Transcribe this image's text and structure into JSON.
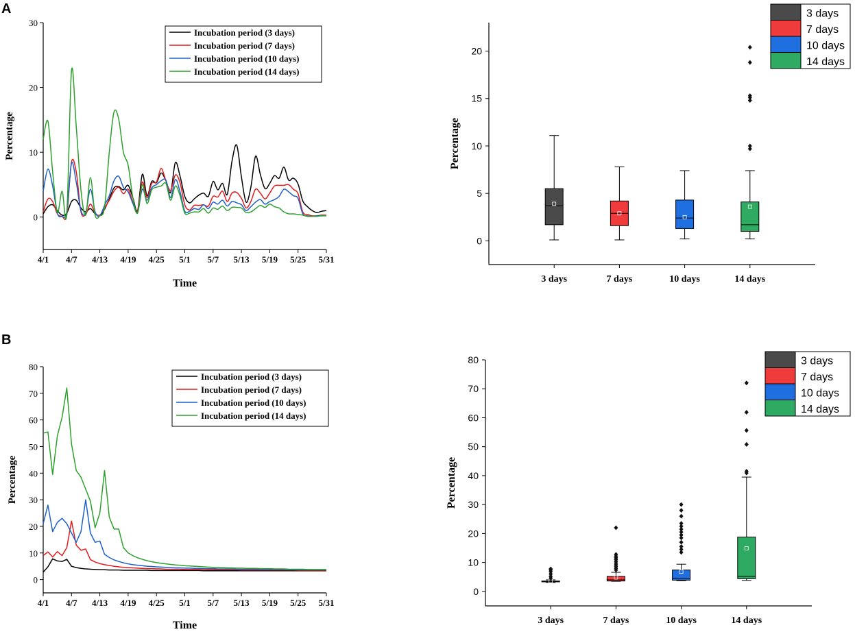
{
  "panels": [
    {
      "label": "A"
    },
    {
      "label": "B"
    }
  ],
  "chart_data": [
    {
      "type": "line",
      "panel": "A",
      "xlabel": "Time",
      "ylabel": "Percentage",
      "ylim": [
        -5,
        30
      ],
      "yticks": [
        0,
        10,
        20,
        30
      ],
      "x_tick_labels": [
        "4/1",
        "4/7",
        "4/13",
        "4/19",
        "4/25",
        "5/1",
        "5/7",
        "5/13",
        "5/19",
        "5/25",
        "5/31"
      ],
      "x_range_days": [
        0,
        60
      ],
      "legend_position": "top-center",
      "series": [
        {
          "name": "Incubation period (3 days)",
          "color": "#000000",
          "values": [
            0.5,
            1.6,
            1.9,
            1.0,
            0.3,
            0.6,
            2.4,
            2.6,
            1.4,
            0.8,
            1.3,
            0.5,
            0.2,
            1.2,
            2.8,
            4.5,
            4.7,
            4.2,
            4.9,
            3.0,
            1.0,
            6.6,
            3.3,
            5.5,
            5.3,
            6.8,
            5.6,
            3.8,
            8.4,
            6.3,
            3.2,
            2.2,
            2.8,
            3.4,
            3.7,
            3.2,
            5.5,
            4.2,
            5.2,
            3.5,
            8.6,
            11.1,
            6.2,
            2.3,
            4.6,
            9.4,
            6.6,
            4.4,
            5.2,
            6.4,
            6.0,
            7.7,
            5.7,
            6.0,
            5.1,
            2.5,
            1.6,
            1.0,
            0.7,
            0.9,
            1.0
          ]
        },
        {
          "name": "Incubation period (7 days)",
          "color": "#e41a1c",
          "values": [
            0.8,
            2.8,
            2.4,
            0.5,
            0.1,
            0.3,
            8.5,
            7.0,
            0.8,
            0.4,
            2.0,
            0.6,
            0.3,
            1.4,
            2.6,
            4.0,
            4.6,
            3.6,
            4.3,
            2.3,
            0.9,
            5.4,
            3.0,
            5.2,
            5.4,
            7.5,
            5.6,
            4.1,
            6.5,
            5.3,
            1.9,
            1.1,
            1.8,
            1.8,
            1.9,
            1.7,
            3.2,
            3.1,
            4.0,
            2.4,
            3.7,
            3.8,
            2.9,
            1.4,
            2.4,
            4.3,
            3.7,
            2.8,
            3.7,
            4.8,
            4.9,
            4.9,
            5.0,
            4.3,
            3.6,
            0.8,
            0.4,
            0.2,
            0.2,
            0.3,
            0.3
          ]
        },
        {
          "name": "Incubation period (10 days)",
          "color": "#1f5fc8",
          "values": [
            4.0,
            7.4,
            4.8,
            0.6,
            0.1,
            0.8,
            8.3,
            5.4,
            1.0,
            0.6,
            4.3,
            0.8,
            0.2,
            1.8,
            3.3,
            5.6,
            6.3,
            4.6,
            3.9,
            2.1,
            0.7,
            4.3,
            2.6,
            4.5,
            5.0,
            5.6,
            5.7,
            3.0,
            5.8,
            3.9,
            0.9,
            0.9,
            1.3,
            1.2,
            1.9,
            1.3,
            2.3,
            2.0,
            2.6,
            1.7,
            2.4,
            2.2,
            1.9,
            1.0,
            1.6,
            2.3,
            2.7,
            2.0,
            2.4,
            2.7,
            3.2,
            4.3,
            3.9,
            3.3,
            2.9,
            0.5,
            0.2,
            0.1,
            0.2,
            0.2,
            0.2
          ]
        },
        {
          "name": "Incubation period (14 days)",
          "color": "#2ca02c",
          "values": [
            12.0,
            14.8,
            7.0,
            0.7,
            4.0,
            0.5,
            22.6,
            14.0,
            4.2,
            0.3,
            6.1,
            0.3,
            0.2,
            1.5,
            10.0,
            16.2,
            15.1,
            10.0,
            8.0,
            3.0,
            0.6,
            5.0,
            2.1,
            4.2,
            4.6,
            4.8,
            5.2,
            2.6,
            4.8,
            3.3,
            0.6,
            0.6,
            0.8,
            0.8,
            1.3,
            0.6,
            1.4,
            1.2,
            1.7,
            1.0,
            1.5,
            1.5,
            1.4,
            0.7,
            0.8,
            1.3,
            1.8,
            1.5,
            2.0,
            1.6,
            1.4,
            0.8,
            0.5,
            0.5,
            0.4,
            0.3,
            0.1,
            0.1,
            0.1,
            0.2,
            0.2
          ]
        }
      ]
    },
    {
      "type": "box",
      "panel": "A",
      "ylabel": "Percentage",
      "ylim": [
        -2.5,
        23
      ],
      "yticks": [
        0,
        5,
        10,
        15,
        20
      ],
      "categories": [
        "3 days",
        "7 days",
        "10 days",
        "14 days"
      ],
      "legend_position": "top-right",
      "boxes": [
        {
          "name": "3 days",
          "color": "#4a4a4a",
          "min": 0.1,
          "q1": 1.7,
          "median": 3.7,
          "q3": 5.5,
          "max": 11.1,
          "mean": 3.9,
          "outliers": []
        },
        {
          "name": "7 days",
          "color": "#ef3b3b",
          "min": 0.1,
          "q1": 1.6,
          "median": 2.9,
          "q3": 4.2,
          "max": 7.8,
          "mean": 2.9,
          "outliers": []
        },
        {
          "name": "10 days",
          "color": "#1f6fe0",
          "min": 0.2,
          "q1": 1.3,
          "median": 2.4,
          "q3": 4.3,
          "max": 7.4,
          "mean": 2.5,
          "outliers": []
        },
        {
          "name": "14 days",
          "color": "#2eaa62",
          "min": 0.2,
          "q1": 1.0,
          "median": 1.7,
          "q3": 4.1,
          "max": 7.4,
          "mean": 3.6,
          "outliers": [
            9.7,
            10.0,
            14.8,
            15.1,
            15.3,
            18.8,
            20.4
          ]
        }
      ]
    },
    {
      "type": "line",
      "panel": "B",
      "xlabel": "Time",
      "ylabel": "Percentage",
      "ylim": [
        -5,
        80
      ],
      "yticks": [
        0,
        10,
        20,
        30,
        40,
        50,
        60,
        70,
        80
      ],
      "x_tick_labels": [
        "4/1",
        "4/7",
        "4/13",
        "4/19",
        "4/25",
        "5/1",
        "5/7",
        "5/13",
        "5/19",
        "5/25",
        "5/31"
      ],
      "x_range_days": [
        0,
        60
      ],
      "legend_position": "top-right",
      "series": [
        {
          "name": "Incubation period (3 days)",
          "color": "#000000",
          "values": [
            2.8,
            4.8,
            7.8,
            7.0,
            6.8,
            7.6,
            5.0,
            4.5,
            4.2,
            4.0,
            3.9,
            3.8,
            3.7,
            3.7,
            3.6,
            3.6,
            3.6,
            3.5,
            3.5,
            3.5,
            3.5,
            3.5,
            3.5,
            3.4,
            3.4,
            3.4,
            3.4,
            3.4,
            3.4,
            3.4,
            3.4,
            3.4,
            3.4,
            3.4,
            3.3,
            3.3,
            3.3,
            3.3,
            3.3,
            3.3,
            3.3,
            3.3,
            3.3,
            3.3,
            3.3,
            3.3,
            3.3,
            3.3,
            3.3,
            3.3,
            3.3,
            3.3,
            3.3,
            3.3,
            3.3,
            3.3,
            3.3,
            3.3,
            3.3,
            3.3,
            3.3
          ]
        },
        {
          "name": "Incubation period (7 days)",
          "color": "#e41a1c",
          "values": [
            9.0,
            10.4,
            8.5,
            10.5,
            9.0,
            12.0,
            22.0,
            13.0,
            11.0,
            11.5,
            7.5,
            6.6,
            6.0,
            5.6,
            5.3,
            5.0,
            4.8,
            4.6,
            4.5,
            4.4,
            4.3,
            4.2,
            4.1,
            4.1,
            4.0,
            4.0,
            3.9,
            3.9,
            3.9,
            3.9,
            3.8,
            3.8,
            3.8,
            3.8,
            3.8,
            3.7,
            3.7,
            3.7,
            3.7,
            3.7,
            3.7,
            3.7,
            3.6,
            3.6,
            3.6,
            3.6,
            3.6,
            3.6,
            3.6,
            3.6,
            3.6,
            3.6,
            3.6,
            3.6,
            3.5,
            3.5,
            3.5,
            3.5,
            3.5,
            3.5,
            3.5
          ]
        },
        {
          "name": "Incubation period (10 days)",
          "color": "#1f5fc8",
          "values": [
            21.0,
            28.0,
            18.0,
            21.5,
            23.0,
            21.0,
            17.5,
            14.0,
            18.0,
            30.0,
            17.5,
            14.0,
            14.5,
            9.5,
            8.3,
            7.4,
            6.8,
            6.3,
            5.9,
            5.6,
            5.4,
            5.2,
            5.0,
            4.9,
            4.8,
            4.7,
            4.6,
            4.5,
            4.4,
            4.4,
            4.3,
            4.3,
            4.2,
            4.2,
            4.1,
            4.1,
            4.1,
            4.0,
            4.0,
            4.0,
            4.0,
            3.9,
            3.9,
            3.9,
            3.9,
            3.9,
            3.8,
            3.8,
            3.8,
            3.8,
            3.8,
            3.8,
            3.7,
            3.7,
            3.7,
            3.7,
            3.7,
            3.7,
            3.7,
            3.7,
            3.7
          ]
        },
        {
          "name": "Incubation period (14 days)",
          "color": "#2ca02c",
          "values": [
            55.0,
            55.5,
            39.5,
            54.0,
            61.0,
            72.0,
            51.0,
            41.0,
            38.5,
            34.0,
            29.5,
            19.5,
            25.0,
            41.0,
            23.5,
            19.0,
            19.0,
            12.0,
            10.0,
            9.0,
            8.2,
            7.6,
            7.1,
            6.7,
            6.4,
            6.1,
            5.9,
            5.7,
            5.5,
            5.4,
            5.2,
            5.1,
            5.0,
            4.9,
            4.8,
            4.7,
            4.6,
            4.6,
            4.5,
            4.4,
            4.4,
            4.3,
            4.3,
            4.2,
            4.2,
            4.2,
            4.1,
            4.1,
            4.1,
            4.0,
            4.0,
            4.0,
            3.9,
            3.9,
            3.9,
            3.9,
            3.8,
            3.8,
            3.8,
            3.8,
            3.8
          ]
        }
      ]
    },
    {
      "type": "box",
      "panel": "B",
      "ylabel": "Percentage",
      "ylim": [
        -5,
        80
      ],
      "yticks": [
        0,
        10,
        20,
        30,
        40,
        50,
        60,
        70,
        80
      ],
      "categories": [
        "3 days",
        "7 days",
        "10 days",
        "14 days"
      ],
      "legend_position": "top-right",
      "boxes": [
        {
          "name": "3 days",
          "color": "#4a4a4a",
          "min": 3.1,
          "q1": 3.3,
          "median": 3.4,
          "q3": 3.6,
          "max": 4.0,
          "mean": 3.6,
          "outliers": [
            4.6,
            5.2,
            6.0,
            6.8,
            7.4,
            7.8
          ]
        },
        {
          "name": "7 days",
          "color": "#ef3b3b",
          "min": 3.5,
          "q1": 3.6,
          "median": 4.0,
          "q3": 5.2,
          "max": 6.6,
          "mean": 4.8,
          "outliers": [
            7.4,
            8.0,
            8.6,
            9.2,
            9.8,
            10.4,
            11.0,
            11.6,
            12.2,
            12.8,
            22.0
          ]
        },
        {
          "name": "10 days",
          "color": "#1f6fe0",
          "min": 3.7,
          "q1": 3.9,
          "median": 4.5,
          "q3": 7.4,
          "max": 9.4,
          "mean": 6.8,
          "outliers": [
            13.5,
            14.5,
            15.5,
            17.0,
            18.5,
            19.5,
            20.5,
            21.5,
            22.5,
            23.5,
            26.0,
            28.0,
            30.0
          ]
        },
        {
          "name": "14 days",
          "color": "#2eaa62",
          "min": 3.8,
          "q1": 4.4,
          "median": 5.2,
          "q3": 18.8,
          "max": 39.5,
          "mean": 14.9,
          "outliers": [
            40.9,
            41.5,
            50.8,
            55.6,
            61.9,
            72.0
          ]
        }
      ]
    }
  ]
}
